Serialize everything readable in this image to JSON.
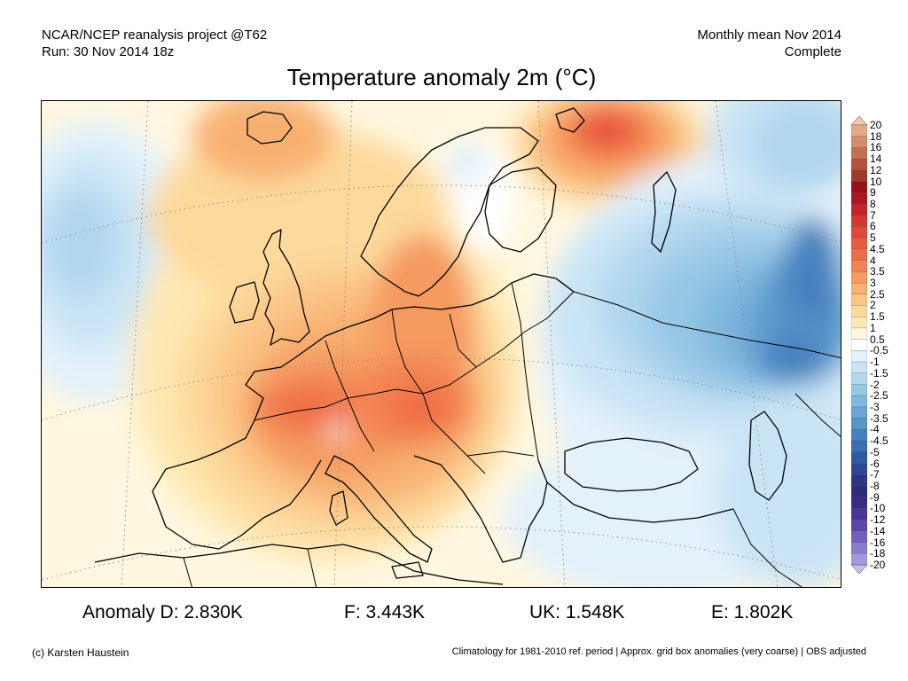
{
  "header": {
    "left_line1": "NCAR/NCEP reanalysis project @T62",
    "left_line2": "Run: 30 Nov 2014 18z",
    "right_line1": "Monthly mean Nov 2014",
    "right_line2": "Complete"
  },
  "title": "Temperature anomaly 2m (°C)",
  "colorbar": {
    "labels": [
      "20",
      "18",
      "16",
      "14",
      "12",
      "10",
      "9",
      "8",
      "7",
      "6",
      "5",
      "4.5",
      "4",
      "3.5",
      "3",
      "2.5",
      "2",
      "1.5",
      "1",
      "0.5",
      "-0.5",
      "-1",
      "-1.5",
      "-2",
      "-2.5",
      "-3",
      "-3.5",
      "-4",
      "-4.5",
      "-5",
      "-6",
      "-7",
      "-8",
      "-9",
      "-10",
      "-12",
      "-14",
      "-16",
      "-18",
      "-20"
    ],
    "colors": [
      "#f2c7ae",
      "#e4a889",
      "#d58c6c",
      "#c56f52",
      "#b4533c",
      "#a13a2a",
      "#96101a",
      "#ae1620",
      "#c3232a",
      "#d63630",
      "#e4473a",
      "#ec5a40",
      "#f06e47",
      "#f38452",
      "#f59a60",
      "#f8b071",
      "#fbc586",
      "#fdd99c",
      "#fee9b4",
      "#fff7df",
      "#ffffff",
      "#e3f1fb",
      "#c9e4f5",
      "#b1d6ee",
      "#98c7e6",
      "#80b7de",
      "#6aa5d4",
      "#5794c9",
      "#4681be",
      "#3a6db1",
      "#2f5aa3",
      "#2a4895",
      "#2a3584",
      "#2d2a7a",
      "#3a2a85",
      "#4a3595",
      "#5c46a8",
      "#7360bd",
      "#8b7bcf",
      "#a698de",
      "#c5bbee"
    ]
  },
  "stats": {
    "d": "Anomaly D: 2.830K",
    "f": "F: 3.443K",
    "uk": "UK: 1.548K",
    "e": "E: 1.802K"
  },
  "footer": {
    "left": "(c) Karsten Haustein",
    "right": "Climatology for 1981-2010 ref. period | Approx. grid box anomalies (very coarse) | OBS adjusted"
  }
}
